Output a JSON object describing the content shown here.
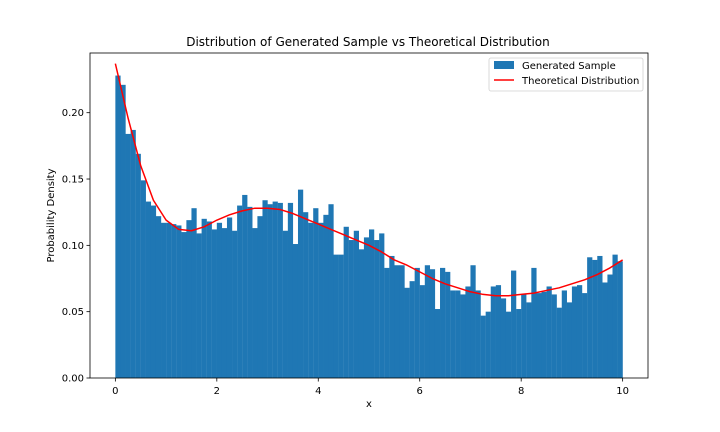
{
  "chart_data": {
    "type": "bar",
    "title": "Distribution of Generated Sample vs Theoretical Distribution",
    "xlabel": "x",
    "ylabel": "Probability Density",
    "xlim": [
      -0.5,
      10.5
    ],
    "ylim": [
      0,
      0.245
    ],
    "xticks": [
      "0",
      "2",
      "4",
      "6",
      "8",
      "10"
    ],
    "xtick_values": [
      0,
      2,
      4,
      6,
      8,
      10
    ],
    "yticks": [
      "0.00",
      "0.05",
      "0.10",
      "0.15",
      "0.20"
    ],
    "ytick_values": [
      0,
      0.05,
      0.1,
      0.15,
      0.2
    ],
    "grid": false,
    "legend_position": "top-right",
    "bins": {
      "start": 0,
      "end": 10,
      "count": 100
    },
    "series": [
      {
        "name": "Generated Sample",
        "kind": "histogram",
        "color": "#1f77b4",
        "values": [
          0.228,
          0.221,
          0.184,
          0.187,
          0.169,
          0.149,
          0.133,
          0.13,
          0.122,
          0.117,
          0.117,
          0.116,
          0.115,
          0.11,
          0.119,
          0.128,
          0.109,
          0.12,
          0.118,
          0.112,
          0.117,
          0.113,
          0.121,
          0.111,
          0.13,
          0.138,
          0.129,
          0.113,
          0.122,
          0.134,
          0.131,
          0.133,
          0.132,
          0.111,
          0.132,
          0.101,
          0.142,
          0.125,
          0.117,
          0.128,
          0.117,
          0.123,
          0.131,
          0.093,
          0.093,
          0.114,
          0.104,
          0.111,
          0.097,
          0.106,
          0.112,
          0.104,
          0.109,
          0.083,
          0.092,
          0.085,
          0.085,
          0.068,
          0.073,
          0.083,
          0.07,
          0.085,
          0.082,
          0.052,
          0.083,
          0.08,
          0.066,
          0.066,
          0.063,
          0.069,
          0.085,
          0.066,
          0.047,
          0.05,
          0.069,
          0.07,
          0.06,
          0.05,
          0.081,
          0.052,
          0.063,
          0.057,
          0.083,
          0.064,
          0.065,
          0.069,
          0.063,
          0.053,
          0.066,
          0.057,
          0.069,
          0.07,
          0.064,
          0.091,
          0.089,
          0.092,
          0.072,
          0.078,
          0.093,
          0.088
        ]
      },
      {
        "name": "Theoretical Distribution",
        "kind": "line",
        "color": "#ff0000",
        "x": [
          0,
          0.25,
          0.5,
          0.75,
          1.0,
          1.25,
          1.5,
          1.75,
          2.0,
          2.25,
          2.5,
          2.75,
          3.0,
          3.25,
          3.5,
          3.75,
          4.0,
          4.25,
          4.5,
          4.75,
          5.0,
          5.25,
          5.5,
          5.75,
          6.0,
          6.25,
          6.5,
          6.75,
          7.0,
          7.25,
          7.5,
          7.75,
          8.0,
          8.25,
          8.5,
          8.75,
          9.0,
          9.25,
          9.5,
          9.75,
          10.0
        ],
        "y": [
          0.237,
          0.196,
          0.16,
          0.134,
          0.119,
          0.112,
          0.111,
          0.114,
          0.119,
          0.123,
          0.126,
          0.128,
          0.128,
          0.127,
          0.124,
          0.12,
          0.116,
          0.112,
          0.108,
          0.104,
          0.1,
          0.095,
          0.089,
          0.085,
          0.08,
          0.075,
          0.071,
          0.068,
          0.065,
          0.063,
          0.062,
          0.062,
          0.063,
          0.064,
          0.066,
          0.068,
          0.071,
          0.074,
          0.078,
          0.083,
          0.089
        ]
      }
    ]
  }
}
